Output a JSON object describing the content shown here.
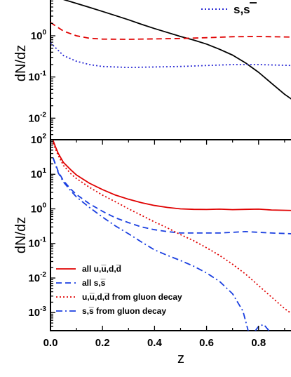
{
  "chart_data": [
    {
      "type": "line",
      "panel": "top",
      "ylabel": "dN/dz",
      "yscale": "log",
      "ylim": [
        0.003,
        8
      ],
      "xlim": [
        0.0,
        0.93
      ],
      "y_tick_labels": [
        {
          "base": "10",
          "exp": "0",
          "value": 1
        },
        {
          "base": "10",
          "exp": "-1",
          "value": 0.1
        },
        {
          "base": "10",
          "exp": "-2",
          "value": 0.01
        }
      ],
      "legend": [
        {
          "label_parts": [
            "s,s",
            "̅"
          ],
          "label": "s,s̅",
          "color": "#2a2ad4",
          "dash": "dot"
        }
      ],
      "series": [
        {
          "color": "#000000",
          "dash": "solid",
          "x": [
            0.05,
            0.1,
            0.15,
            0.2,
            0.25,
            0.3,
            0.35,
            0.4,
            0.45,
            0.5,
            0.55,
            0.6,
            0.65,
            0.7,
            0.75,
            0.8,
            0.85,
            0.9,
            0.93
          ],
          "y": [
            7.6,
            6.1,
            4.9,
            3.9,
            3.1,
            2.45,
            1.9,
            1.5,
            1.2,
            0.96,
            0.79,
            0.63,
            0.47,
            0.34,
            0.22,
            0.13,
            0.07,
            0.038,
            0.028
          ]
        },
        {
          "color": "#e00000",
          "dash": "dash",
          "x": [
            0.0,
            0.05,
            0.1,
            0.15,
            0.2,
            0.3,
            0.4,
            0.5,
            0.6,
            0.7,
            0.8,
            0.93
          ],
          "y": [
            2.1,
            1.3,
            1.0,
            0.87,
            0.83,
            0.82,
            0.84,
            0.86,
            0.9,
            0.95,
            0.96,
            0.93
          ]
        },
        {
          "color": "#2a2ad4",
          "dash": "dot",
          "x": [
            0.0,
            0.05,
            0.1,
            0.15,
            0.2,
            0.3,
            0.4,
            0.5,
            0.6,
            0.7,
            0.8,
            0.93
          ],
          "y": [
            0.68,
            0.33,
            0.24,
            0.2,
            0.18,
            0.17,
            0.175,
            0.18,
            0.19,
            0.2,
            0.2,
            0.19
          ]
        }
      ]
    },
    {
      "type": "line",
      "panel": "bottom",
      "xlabel": "z",
      "ylabel": "dN/dz",
      "yscale": "log",
      "ylim": [
        0.0003,
        100
      ],
      "xlim": [
        0.0,
        0.93
      ],
      "x_tick_labels": [
        "0.0",
        "0.2",
        "0.4",
        "0.6",
        "0.8"
      ],
      "x_ticks": [
        0.0,
        0.2,
        0.4,
        0.6,
        0.8
      ],
      "y_tick_labels": [
        {
          "base": "10",
          "exp": "2",
          "value": 100
        },
        {
          "base": "10",
          "exp": "1",
          "value": 10
        },
        {
          "base": "10",
          "exp": "0",
          "value": 1
        },
        {
          "base": "10",
          "exp": "-1",
          "value": 0.1
        },
        {
          "base": "10",
          "exp": "-2",
          "value": 0.01
        },
        {
          "base": "10",
          "exp": "-3",
          "value": 0.001
        }
      ],
      "legend_position": "bottom-left",
      "series": [
        {
          "name": "all u,u̅,d,d̅",
          "color": "#e00000",
          "dash": "solid",
          "x": [
            0.01,
            0.02,
            0.03,
            0.05,
            0.08,
            0.1,
            0.15,
            0.2,
            0.25,
            0.3,
            0.35,
            0.4,
            0.45,
            0.5,
            0.55,
            0.6,
            0.65,
            0.7,
            0.75,
            0.8,
            0.85,
            0.93
          ],
          "y": [
            95,
            60,
            40,
            22,
            13,
            9.5,
            5.5,
            3.6,
            2.5,
            1.9,
            1.5,
            1.25,
            1.1,
            1.0,
            0.97,
            0.96,
            0.98,
            0.95,
            0.97,
            0.98,
            0.93,
            0.9
          ]
        },
        {
          "name": "all s,s̅",
          "color": "#1a3fe0",
          "dash": "dash",
          "x": [
            0.01,
            0.03,
            0.05,
            0.08,
            0.1,
            0.15,
            0.2,
            0.25,
            0.3,
            0.35,
            0.4,
            0.45,
            0.5,
            0.55,
            0.6,
            0.65,
            0.7,
            0.75,
            0.8,
            0.85,
            0.93
          ],
          "y": [
            30,
            12,
            6.5,
            3.6,
            2.6,
            1.4,
            0.85,
            0.55,
            0.4,
            0.3,
            0.25,
            0.22,
            0.2,
            0.2,
            0.2,
            0.2,
            0.21,
            0.22,
            0.21,
            0.2,
            0.19
          ]
        },
        {
          "name": "u,u̅,d,d̅ from gluon decay",
          "color": "#e00000",
          "dash": "dot",
          "x": [
            0.01,
            0.03,
            0.05,
            0.08,
            0.1,
            0.15,
            0.2,
            0.25,
            0.3,
            0.35,
            0.4,
            0.45,
            0.5,
            0.55,
            0.6,
            0.65,
            0.7,
            0.75,
            0.8,
            0.85,
            0.9,
            0.93
          ],
          "y": [
            80,
            35,
            18,
            10,
            7.5,
            4.2,
            2.5,
            1.6,
            1.0,
            0.65,
            0.42,
            0.28,
            0.18,
            0.12,
            0.075,
            0.045,
            0.025,
            0.013,
            0.006,
            0.0028,
            0.0013,
            0.0009
          ]
        },
        {
          "name": "s,s̅ from gluon decay",
          "color": "#1a3fe0",
          "dash": "dashdot",
          "x": [
            0.01,
            0.03,
            0.05,
            0.08,
            0.1,
            0.15,
            0.2,
            0.25,
            0.3,
            0.35,
            0.4,
            0.45,
            0.5,
            0.55,
            0.6,
            0.65,
            0.7,
            0.74,
            0.76,
            0.78,
            0.8,
            0.82,
            0.84,
            0.86
          ],
          "y": [
            30,
            11,
            6.0,
            3.2,
            2.2,
            1.1,
            0.58,
            0.32,
            0.19,
            0.11,
            0.065,
            0.045,
            0.032,
            0.022,
            0.014,
            0.008,
            0.0035,
            0.0011,
            0.0003,
            0.00025,
            0.0004,
            0.00045,
            0.0003,
            0.0002
          ]
        }
      ]
    }
  ]
}
